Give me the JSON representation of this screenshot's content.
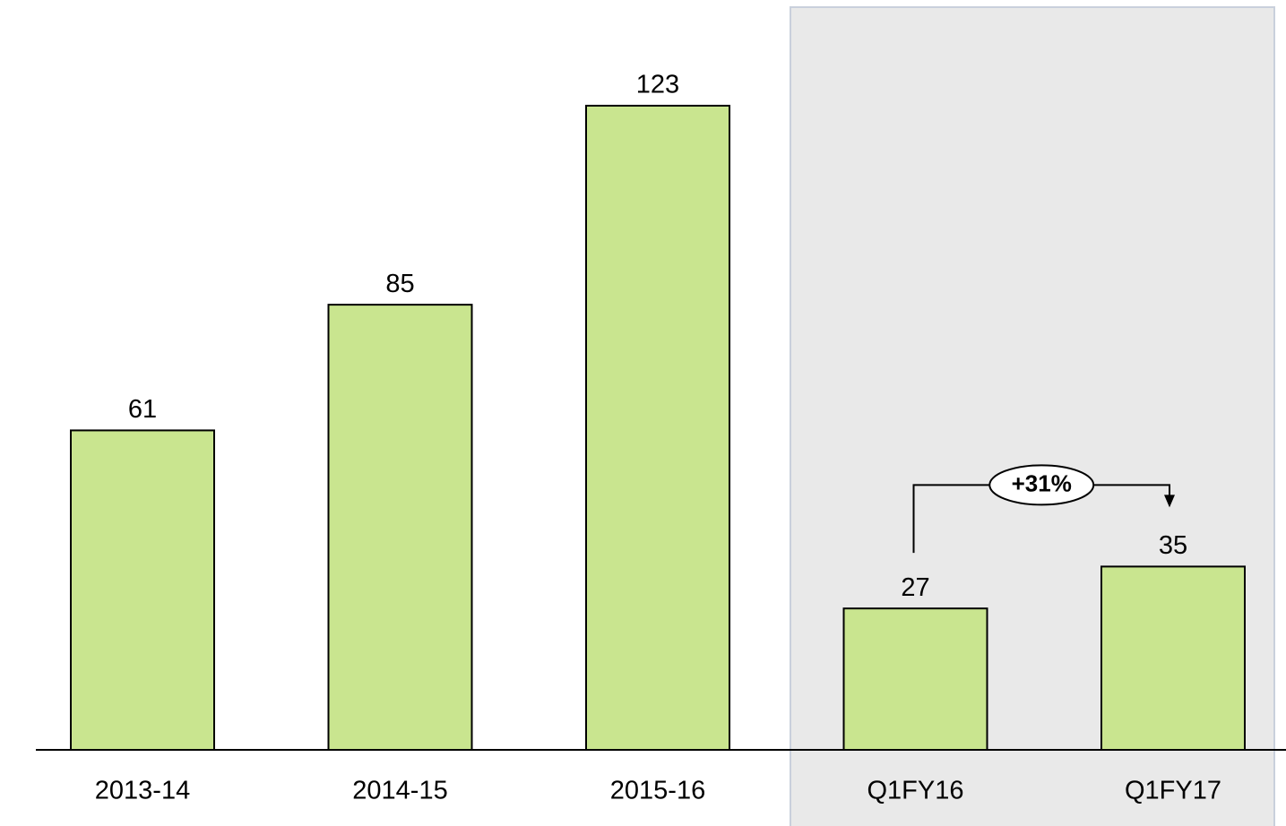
{
  "chart_data": {
    "type": "bar",
    "categories": [
      "2013-14",
      "2014-15",
      "2015-16",
      "Q1FY16",
      "Q1FY17"
    ],
    "values": [
      61,
      85,
      123,
      27,
      35
    ],
    "color": "#c9e58f",
    "ylim": [
      0,
      140
    ],
    "annotation": "+31%"
  }
}
